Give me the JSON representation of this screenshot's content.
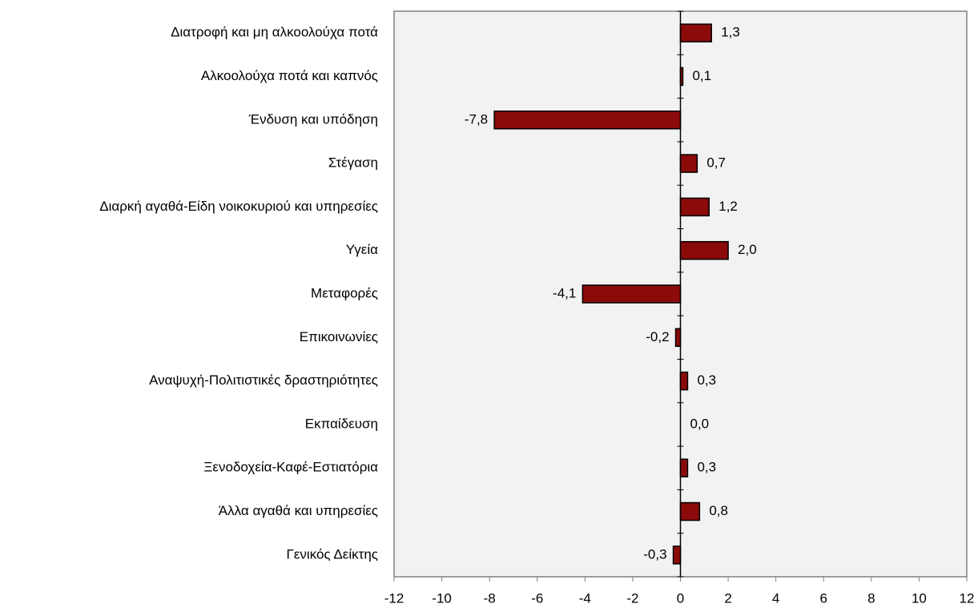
{
  "chart_data": {
    "type": "bar",
    "orientation": "horizontal",
    "categories": [
      "Διατροφή και μη αλκοολούχα ποτά",
      "Αλκοολούχα ποτά και καπνός",
      "Ένδυση και υπόδηση",
      "Στέγαση",
      "Διαρκή αγαθά-Είδη νοικοκυριού και υπηρεσίες",
      "Υγεία",
      "Μεταφορές",
      "Επικοινωνίες",
      "Αναψυχή-Πολιτιστικές δραστηριότητες",
      "Εκπαίδευση",
      "Ξενοδοχεία-Καφέ-Εστιατόρια",
      "Άλλα αγαθά και υπηρεσίες",
      "Γενικός Δείκτης"
    ],
    "values": [
      1.3,
      0.1,
      -7.8,
      0.7,
      1.2,
      2.0,
      -4.1,
      -0.2,
      0.3,
      0.0,
      0.3,
      0.8,
      -0.3
    ],
    "value_labels": [
      "1,3",
      "0,1",
      "-7,8",
      "0,7",
      "1,2",
      "2,0",
      "-4,1",
      "-0,2",
      "0,3",
      "0,0",
      "0,3",
      "0,8",
      "-0,3"
    ],
    "color": "#8b0a0a",
    "xlim": [
      -12,
      12
    ],
    "xticks": [
      -12,
      -10,
      -8,
      -6,
      -4,
      -2,
      0,
      2,
      4,
      6,
      8,
      10,
      12
    ]
  }
}
